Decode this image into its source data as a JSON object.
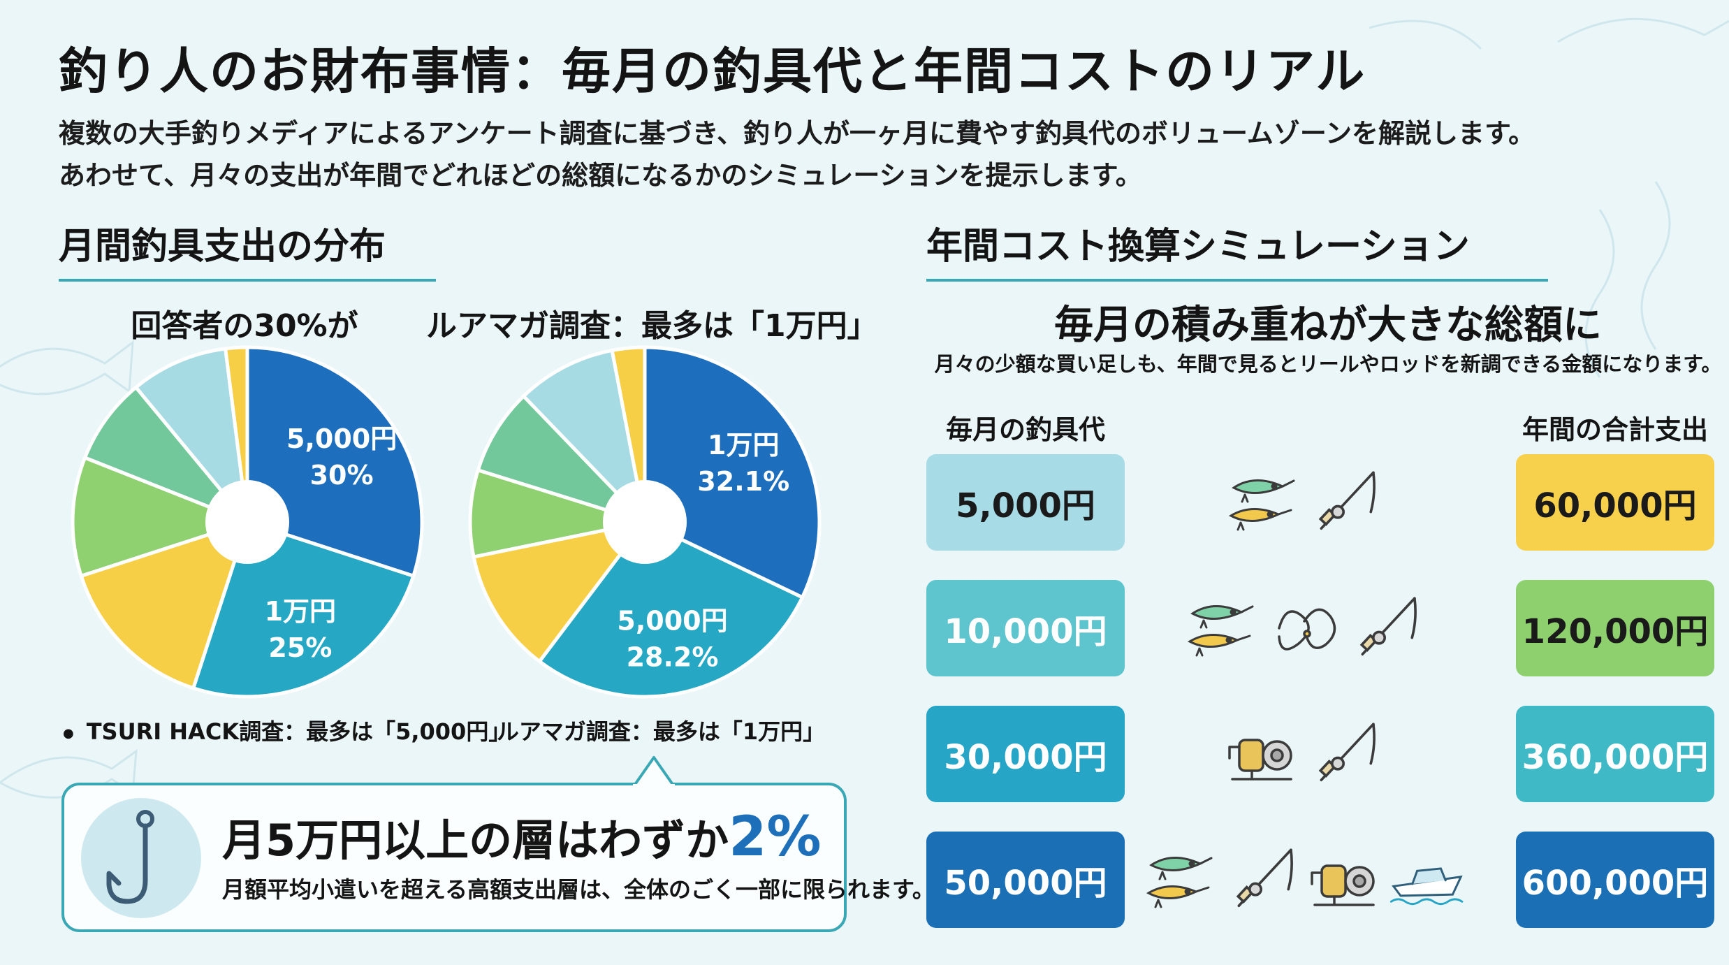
{
  "title": "釣り人のお財布事情：毎月の釣具代と年間コストのリアル",
  "subtitle_lines": [
    "複数の大手釣りメディアによるアンケート調査に基づき、釣り人が一ヶ月に費やす釣具代のボリュームゾーンを解説します。",
    "あわせて、月々の支出が年間でどれほどの総額になるかのシミュレーションを提示します。"
  ],
  "left_section": {
    "heading": "月間釣具支出の分布",
    "callout": {
      "text_before": "月5万円以上の層はわずか",
      "highlight": "2%",
      "subtext": "月額平均小遣いを超える高額支出層は、全体のごく一部に限られます。"
    }
  },
  "chart_data": [
    {
      "type": "pie",
      "title": "回答者の30%が",
      "caption": "TSURI HACK調査：最多は「5,000円」",
      "slices": [
        {
          "label": "5,000円",
          "value": 30,
          "value_label": "30%",
          "color": "#1d6fbd"
        },
        {
          "label": "1万円",
          "value": 25,
          "value_label": "25%",
          "color": "#26a8c4"
        },
        {
          "label": "",
          "value": 15,
          "color": "#f6cf47"
        },
        {
          "label": "",
          "value": 11,
          "color": "#8fd071"
        },
        {
          "label": "",
          "value": 8,
          "color": "#72c89a"
        },
        {
          "label": "",
          "value": 9,
          "color": "#a6dbe4"
        },
        {
          "label": "",
          "value": 2,
          "color": "#f6cf47"
        }
      ]
    },
    {
      "type": "pie",
      "title": "ルアマガ調査：最多は「1万円」",
      "caption": "ルアマガ調査：最多は「1万円」",
      "slices": [
        {
          "label": "1万円",
          "value": 32.1,
          "value_label": "32.1%",
          "color": "#1d6fbd"
        },
        {
          "label": "5,000円",
          "value": 28.2,
          "value_label": "28.2%",
          "color": "#26a8c4"
        },
        {
          "label": "",
          "value": 11.5,
          "color": "#f6cf47"
        },
        {
          "label": "",
          "value": 8,
          "color": "#8fd071"
        },
        {
          "label": "",
          "value": 8,
          "color": "#72c89a"
        },
        {
          "label": "",
          "value": 9.2,
          "color": "#a6dbe4"
        },
        {
          "label": "",
          "value": 3,
          "color": "#f6cf47"
        }
      ]
    },
    {
      "type": "table",
      "heading": "年間コスト換算シミュレーション",
      "title": "毎月の積み重ねが大きな総額に",
      "description": "月々の少額な買い足しも、年間で見るとリールやロッドを新調できる金額になります。",
      "columns": [
        "毎月の釣具代",
        "年間の合計支出"
      ],
      "rows": [
        {
          "monthly": "5,000円",
          "annual": "60,000円",
          "monthly_color": "#a7dbe6",
          "annual_color": "#f8d14c",
          "icons": [
            "lure-icon",
            "fishing-rod-icon"
          ]
        },
        {
          "monthly": "10,000円",
          "annual": "120,000円",
          "monthly_color": "#5ec4cd",
          "annual_color": "#8ed06e",
          "icons": [
            "lure-icon",
            "fishing-line-icon",
            "fishing-rod-icon"
          ]
        },
        {
          "monthly": "30,000円",
          "annual": "360,000円",
          "monthly_color": "#27a5c7",
          "annual_color": "#3fb9c5",
          "icons": [
            "reel-icon",
            "fishing-rod-icon"
          ]
        },
        {
          "monthly": "50,000円",
          "annual": "600,000円",
          "monthly_color": "#1b6fb5",
          "annual_color": "#1b6fb5",
          "icons": [
            "lure-icon",
            "fishing-rod-icon",
            "reel-icon",
            "boat-icon"
          ]
        }
      ]
    }
  ]
}
